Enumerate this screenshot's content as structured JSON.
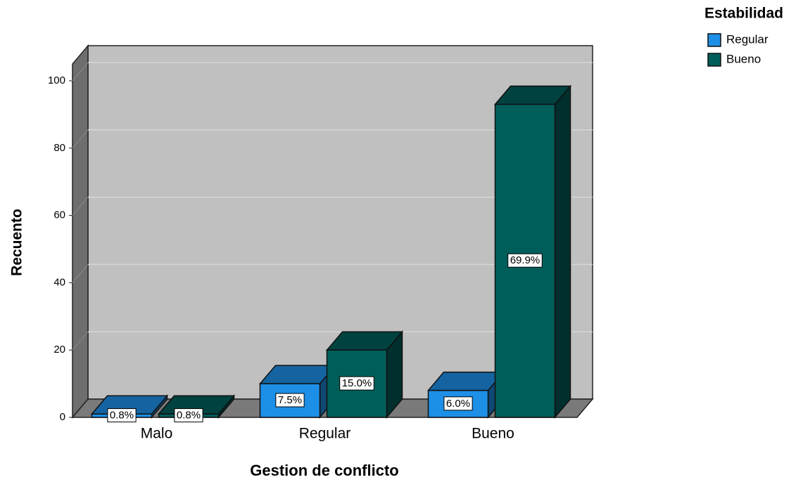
{
  "chart_data": {
    "type": "bar3d",
    "x_label": "Gestion de conflicto",
    "y_label": "Recuento",
    "legend_title": "Estabilidad",
    "legend_position": "top-right",
    "categories": [
      "Malo",
      "Regular",
      "Bueno"
    ],
    "series": [
      {
        "name": "Regular",
        "color": "#1e8fe6",
        "values": [
          1,
          10,
          8
        ],
        "percent_labels": [
          "0.8%",
          "7.5%",
          "6.0%"
        ]
      },
      {
        "name": "Bueno",
        "color": "#005e5a",
        "values": [
          1,
          20,
          93
        ],
        "percent_labels": [
          "0.8%",
          "15.0%",
          "69.9%"
        ]
      }
    ],
    "ylim": [
      0,
      105
    ],
    "yticks": [
      0,
      20,
      40,
      60,
      80,
      100
    ],
    "grid": true
  }
}
